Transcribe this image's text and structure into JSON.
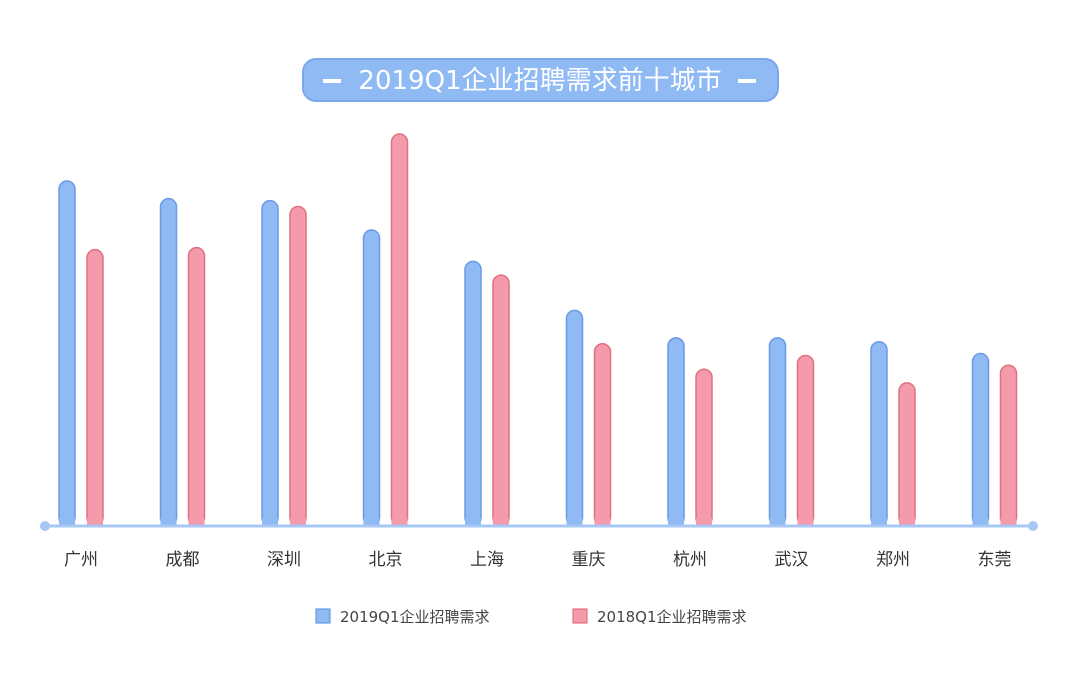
{
  "chart_data": {
    "type": "bar",
    "title": "2019Q1企业招聘需求前十城市",
    "categories": [
      "广州",
      "成都",
      "深圳",
      "北京",
      "上海",
      "重庆",
      "杭州",
      "武汉",
      "郑州",
      "东莞"
    ],
    "series": [
      {
        "name": "2019Q1企业招聘需求",
        "values": [
          88,
          83.5,
          83,
          75.5,
          67.5,
          55,
          48,
          48,
          47,
          44
        ],
        "color": "#8fbaf3",
        "stroke": "#6a99e6"
      },
      {
        "name": "2018Q1企业招聘需求",
        "values": [
          70.5,
          71,
          81.5,
          100,
          64,
          46.5,
          40,
          43.5,
          36.5,
          41
        ],
        "color": "#f59aab",
        "stroke": "#e0707f"
      }
    ],
    "ylim": [
      0,
      100
    ],
    "xlabel": "",
    "ylabel": "",
    "grid": false,
    "legend": "bottom",
    "axis_color": "#a7c8f5",
    "title_bg": "#8fbaf3",
    "title_border": "#7aa6ee"
  }
}
